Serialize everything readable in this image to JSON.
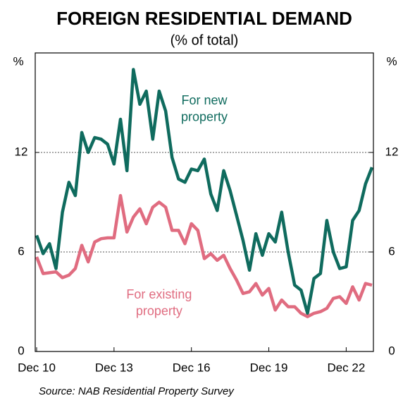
{
  "chart_data": {
    "type": "line",
    "title": "FOREIGN RESIDENTIAL DEMAND",
    "subtitle": "(% of total)",
    "y_label": "%",
    "source": "Source: NAB Residential Property Survey",
    "categories": [
      "Dec 10",
      null,
      null,
      null,
      null,
      null,
      null,
      null,
      null,
      null,
      null,
      null,
      "Dec 13",
      null,
      null,
      null,
      null,
      null,
      null,
      null,
      null,
      null,
      null,
      null,
      "Dec 16",
      null,
      null,
      null,
      null,
      null,
      null,
      null,
      null,
      null,
      null,
      null,
      "Dec 19",
      null,
      null,
      null,
      null,
      null,
      null,
      null,
      null,
      null,
      null,
      null,
      "Dec 22",
      null,
      null,
      null,
      null
    ],
    "series": [
      {
        "color": "#0f6b5e",
        "values": [
          7.0,
          5.9,
          6.5,
          5.0,
          8.4,
          10.2,
          9.4,
          13.2,
          12.0,
          12.9,
          12.8,
          12.5,
          11.3,
          14.0,
          10.9,
          17.0,
          14.9,
          15.7,
          12.8,
          15.7,
          14.5,
          11.7,
          10.4,
          10.2,
          11.0,
          10.9,
          11.6,
          9.5,
          8.5,
          10.9,
          9.7,
          8.2,
          6.7,
          4.9,
          7.1,
          5.8,
          7.1,
          6.6,
          8.4,
          6.0,
          4.0,
          3.7,
          2.3,
          4.4,
          4.7,
          7.9,
          6.0,
          5.0,
          5.1,
          7.9,
          8.5,
          10.1,
          11.1
        ]
      },
      {
        "color": "#e06c80",
        "values": [
          5.7,
          4.7,
          4.75,
          4.8,
          4.45,
          4.6,
          5.0,
          6.4,
          5.4,
          6.6,
          6.8,
          6.85,
          6.85,
          9.4,
          7.2,
          8.1,
          8.6,
          7.7,
          8.7,
          9.0,
          8.7,
          7.3,
          7.3,
          6.5,
          7.7,
          7.3,
          5.6,
          5.9,
          5.5,
          5.8,
          5.0,
          4.3,
          3.5,
          3.6,
          4.1,
          3.4,
          3.8,
          2.5,
          3.1,
          2.7,
          2.7,
          2.3,
          2.1,
          2.3,
          2.4,
          2.6,
          3.2,
          3.3,
          2.9,
          3.9,
          3.1,
          4.1,
          4.0
        ]
      }
    ],
    "annotations": [
      {
        "text": "For new",
        "series": 0,
        "at": [
          26,
          15.1
        ]
      },
      {
        "text": "property",
        "series": 0,
        "at": [
          26,
          14.1
        ]
      },
      {
        "text": "For existing",
        "series": 1,
        "at": [
          19,
          3.4
        ]
      },
      {
        "text": "property",
        "series": 1,
        "at": [
          19,
          2.4
        ]
      }
    ],
    "ylim": [
      0,
      18
    ],
    "yticks": [
      0,
      6,
      12
    ],
    "grid": true
  }
}
